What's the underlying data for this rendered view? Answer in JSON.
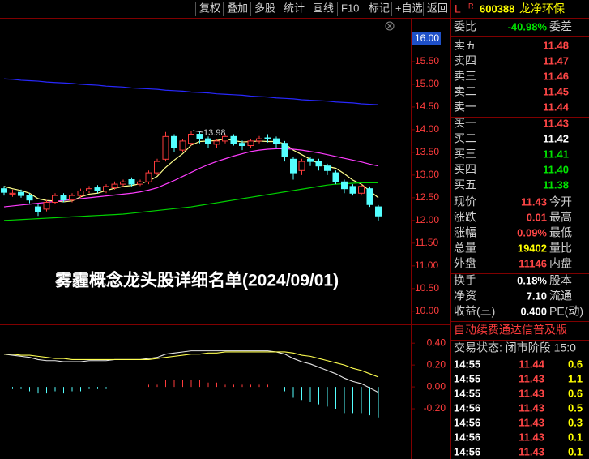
{
  "chart_data": [
    {
      "type": "candlestick",
      "open": [
        12.7,
        12.58,
        12.62,
        12.55,
        12.3,
        12.25,
        12.4,
        12.55,
        12.45,
        12.55,
        12.65,
        12.72,
        12.65,
        12.72,
        12.8,
        12.9,
        12.8,
        12.85,
        13.05,
        13.35,
        13.85,
        13.55,
        13.7,
        13.9,
        13.8,
        13.68,
        13.75,
        13.85,
        13.7,
        13.65,
        13.75,
        13.82,
        13.8,
        13.7,
        13.35,
        13.1,
        13.35,
        13.3,
        13.2,
        13.05,
        12.85,
        12.75,
        12.6,
        12.7,
        12.3
      ],
      "high": [
        12.76,
        12.68,
        12.68,
        12.6,
        12.36,
        12.45,
        12.6,
        12.6,
        12.6,
        12.7,
        12.76,
        12.78,
        12.8,
        12.86,
        12.9,
        12.95,
        12.9,
        13.1,
        13.36,
        13.95,
        13.9,
        13.8,
        13.98,
        13.95,
        13.85,
        13.8,
        13.9,
        13.9,
        13.76,
        13.8,
        13.86,
        13.9,
        13.85,
        13.75,
        13.4,
        13.36,
        13.4,
        13.36,
        13.25,
        13.1,
        12.9,
        12.8,
        12.8,
        12.75,
        12.34
      ],
      "low": [
        12.55,
        12.52,
        12.5,
        12.38,
        12.1,
        12.2,
        12.36,
        12.4,
        12.4,
        12.5,
        12.6,
        12.6,
        12.6,
        12.68,
        12.75,
        12.75,
        12.76,
        12.8,
        13.0,
        13.3,
        13.5,
        13.5,
        13.65,
        13.7,
        13.6,
        13.6,
        13.7,
        13.65,
        13.55,
        13.6,
        13.7,
        13.72,
        13.6,
        13.3,
        12.9,
        13.0,
        13.2,
        13.1,
        13.0,
        12.8,
        12.6,
        12.55,
        12.55,
        12.3,
        12.0
      ],
      "close": [
        12.62,
        12.6,
        12.55,
        12.45,
        12.2,
        12.4,
        12.55,
        12.45,
        12.55,
        12.65,
        12.7,
        12.65,
        12.75,
        12.8,
        12.85,
        12.8,
        12.85,
        13.05,
        13.3,
        13.85,
        13.6,
        13.75,
        13.9,
        13.8,
        13.7,
        13.75,
        13.85,
        13.7,
        13.65,
        13.75,
        13.8,
        13.8,
        13.7,
        13.4,
        13.05,
        13.3,
        13.3,
        13.2,
        13.1,
        12.85,
        12.7,
        12.6,
        12.75,
        12.35,
        12.1
      ],
      "up_color": "#ff3c3c",
      "down_color": "#54ffff",
      "series": [
        {
          "color": "#2828ff",
          "values": [
            15.12,
            15.11,
            15.09,
            15.08,
            15.07,
            15.05,
            15.04,
            15.03,
            15.02,
            15.0,
            14.99,
            14.98,
            14.96,
            14.95,
            14.94,
            14.92,
            14.91,
            14.9,
            14.89,
            14.87,
            14.86,
            14.85,
            14.83,
            14.82,
            14.81,
            14.79,
            14.78,
            14.77,
            14.76,
            14.74,
            14.73,
            14.72,
            14.7,
            14.69,
            14.68,
            14.66,
            14.65,
            14.64,
            14.63,
            14.61,
            14.6,
            14.59,
            14.57,
            14.56,
            14.55
          ]
        },
        {
          "color": "#ffff8c",
          "values": [
            12.75,
            12.7,
            12.66,
            12.6,
            12.48,
            12.44,
            12.43,
            12.41,
            12.43,
            12.52,
            12.58,
            12.6,
            12.66,
            12.71,
            12.75,
            12.77,
            12.81,
            12.87,
            12.97,
            13.17,
            13.33,
            13.47,
            13.66,
            13.74,
            13.75,
            13.76,
            13.8,
            13.76,
            13.73,
            13.74,
            13.75,
            13.74,
            13.74,
            13.69,
            13.55,
            13.45,
            13.35,
            13.25,
            13.19,
            13.15,
            13.03,
            12.89,
            12.8,
            12.65,
            12.5
          ]
        },
        {
          "color": "#ff3cff",
          "values": [
            12.3,
            12.32,
            12.34,
            12.36,
            12.38,
            12.4,
            12.42,
            12.44,
            12.46,
            12.48,
            12.5,
            12.52,
            12.54,
            12.56,
            12.58,
            12.6,
            12.63,
            12.67,
            12.72,
            12.8,
            12.88,
            12.97,
            13.06,
            13.15,
            13.23,
            13.3,
            13.36,
            13.42,
            13.47,
            13.52,
            13.55,
            13.57,
            13.58,
            13.58,
            13.57,
            13.55,
            13.52,
            13.49,
            13.45,
            13.41,
            13.37,
            13.33,
            13.29,
            13.24,
            13.2
          ]
        },
        {
          "color": "#00d200",
          "values": [
            12.0,
            12.01,
            12.02,
            12.03,
            12.04,
            12.05,
            12.06,
            12.07,
            12.08,
            12.09,
            12.1,
            12.11,
            12.12,
            12.13,
            12.14,
            12.16,
            12.18,
            12.2,
            12.22,
            12.24,
            12.26,
            12.28,
            12.3,
            12.33,
            12.36,
            12.39,
            12.42,
            12.45,
            12.48,
            12.51,
            12.54,
            12.57,
            12.6,
            12.63,
            12.66,
            12.69,
            12.72,
            12.75,
            12.78,
            12.8,
            12.81,
            12.82,
            12.83,
            12.83,
            12.83
          ]
        }
      ],
      "max_label": 13.98,
      "ylim": [
        9.8,
        16.5
      ],
      "yticks": [
        {
          "value": 16,
          "label": "16.00",
          "highlight": true
        },
        {
          "value": 15.5,
          "label": "15.50"
        },
        {
          "value": 15,
          "label": "15.00"
        },
        {
          "value": 14.5,
          "label": "14.50"
        },
        {
          "value": 14,
          "label": "14.00"
        },
        {
          "value": 13.5,
          "label": "13.50"
        },
        {
          "value": 13,
          "label": "13.00"
        },
        {
          "value": 12.5,
          "label": "12.50"
        },
        {
          "value": 12,
          "label": "12.00"
        },
        {
          "value": 11.5,
          "label": "11.50"
        },
        {
          "value": 11,
          "label": "11.00"
        },
        {
          "value": 10.5,
          "label": "10.50"
        },
        {
          "value": 10,
          "label": "10.00"
        }
      ]
    },
    {
      "type": "macd",
      "histogram": {
        "up_color": "#ff3c3c",
        "down_color": "#54ffff",
        "values": [
          0,
          -0.02,
          -0.02,
          -0.04,
          -0.06,
          -0.06,
          -0.04,
          -0.06,
          -0.04,
          -0.04,
          -0.02,
          -0.02,
          -0.02,
          0,
          0,
          0,
          0,
          0.02,
          0.02,
          0.06,
          0.06,
          0.06,
          0.06,
          0.06,
          0.04,
          0.04,
          0.02,
          0.02,
          0.02,
          0.02,
          0.02,
          0.02,
          0,
          -0.04,
          -0.1,
          -0.12,
          -0.14,
          -0.16,
          -0.18,
          -0.2,
          -0.24,
          -0.24,
          -0.24,
          -0.26,
          -0.28
        ]
      },
      "series": [
        {
          "color": "#e6e6e6",
          "values": [
            0.3,
            0.29,
            0.28,
            0.27,
            0.25,
            0.24,
            0.24,
            0.23,
            0.23,
            0.23,
            0.24,
            0.24,
            0.24,
            0.25,
            0.25,
            0.25,
            0.25,
            0.26,
            0.27,
            0.3,
            0.31,
            0.32,
            0.33,
            0.33,
            0.33,
            0.33,
            0.33,
            0.33,
            0.33,
            0.33,
            0.33,
            0.33,
            0.32,
            0.3,
            0.26,
            0.23,
            0.21,
            0.18,
            0.15,
            0.12,
            0.08,
            0.05,
            0.03,
            -0.01,
            -0.05
          ]
        },
        {
          "color": "#ffff50",
          "values": [
            0.3,
            0.3,
            0.29,
            0.29,
            0.28,
            0.27,
            0.26,
            0.26,
            0.25,
            0.25,
            0.25,
            0.25,
            0.25,
            0.25,
            0.25,
            0.25,
            0.25,
            0.25,
            0.26,
            0.27,
            0.28,
            0.29,
            0.3,
            0.3,
            0.31,
            0.31,
            0.32,
            0.32,
            0.32,
            0.32,
            0.32,
            0.32,
            0.32,
            0.32,
            0.31,
            0.29,
            0.28,
            0.26,
            0.24,
            0.22,
            0.2,
            0.17,
            0.15,
            0.12,
            0.09
          ]
        }
      ],
      "ylim": [
        -0.66,
        0.55
      ],
      "yticks": [
        {
          "value": 0.4,
          "label": "0.40"
        },
        {
          "value": 0.2,
          "label": "0.20"
        },
        {
          "value": 0,
          "label": "0.00"
        },
        {
          "value": -0.2,
          "label": "-0.20"
        }
      ]
    }
  ],
  "toolbar": [
    "复权",
    "叠加",
    "多股",
    "统计",
    "画线",
    "F10",
    "标记",
    "+自选",
    "返回"
  ],
  "header": {
    "market": "L",
    "flag": "R",
    "code": "600388",
    "name": "龙净环保"
  },
  "overlay_title": "雾霾概念龙头股详细名单(2024/09/01)",
  "weibi": {
    "label": "委比",
    "value": "-40.98%",
    "label2": "委差",
    "color": "#00e600"
  },
  "asks": [
    {
      "label": "卖五",
      "price": "11.48"
    },
    {
      "label": "卖四",
      "price": "11.47"
    },
    {
      "label": "卖三",
      "price": "11.46"
    },
    {
      "label": "卖二",
      "price": "11.45"
    },
    {
      "label": "卖一",
      "price": "11.44"
    }
  ],
  "bids": [
    {
      "label": "买一",
      "price": "11.43",
      "color": "#ff4646"
    },
    {
      "label": "买二",
      "price": "11.42",
      "color": "#ffffff"
    },
    {
      "label": "买三",
      "price": "11.41",
      "color": "#00e600"
    },
    {
      "label": "买四",
      "price": "11.40",
      "color": "#00e600"
    },
    {
      "label": "买五",
      "price": "11.38",
      "color": "#00e600"
    }
  ],
  "stats": [
    {
      "label": "现价",
      "value": "11.43",
      "label2": "今开",
      "color": "#ff4646"
    },
    {
      "label": "涨跌",
      "value": "0.01",
      "label2": "最高",
      "color": "#ff4646"
    },
    {
      "label": "涨幅",
      "value": "0.09%",
      "label2": "最低",
      "color": "#ff4646"
    },
    {
      "label": "总量",
      "value": "19402",
      "label2": "量比",
      "color": "#ffff00"
    },
    {
      "label": "外盘",
      "value": "11146",
      "label2": "内盘",
      "color": "#ff4646"
    }
  ],
  "stats2": [
    {
      "label": "换手",
      "value": "0.18%",
      "label2": "股本",
      "color": "#ffffff"
    },
    {
      "label": "净资",
      "value": "7.10",
      "label2": "流通",
      "color": "#ffffff"
    },
    {
      "label": "收益(三)",
      "value": "0.400",
      "label2": "PE(动)",
      "color": "#ffffff"
    }
  ],
  "promo": "自动续费通达信普及版",
  "trade_status": "交易状态: 闭市阶段 15:0",
  "trades": [
    [
      "14:55",
      "11.44",
      "0.6"
    ],
    [
      "14:55",
      "11.43",
      "1.1"
    ],
    [
      "14:55",
      "11.43",
      "0.6"
    ],
    [
      "14:56",
      "11.43",
      "0.5"
    ],
    [
      "14:56",
      "11.43",
      "0.3"
    ],
    [
      "14:56",
      "11.43",
      "0.1"
    ],
    [
      "14:56",
      "11.43",
      "0.1"
    ]
  ]
}
